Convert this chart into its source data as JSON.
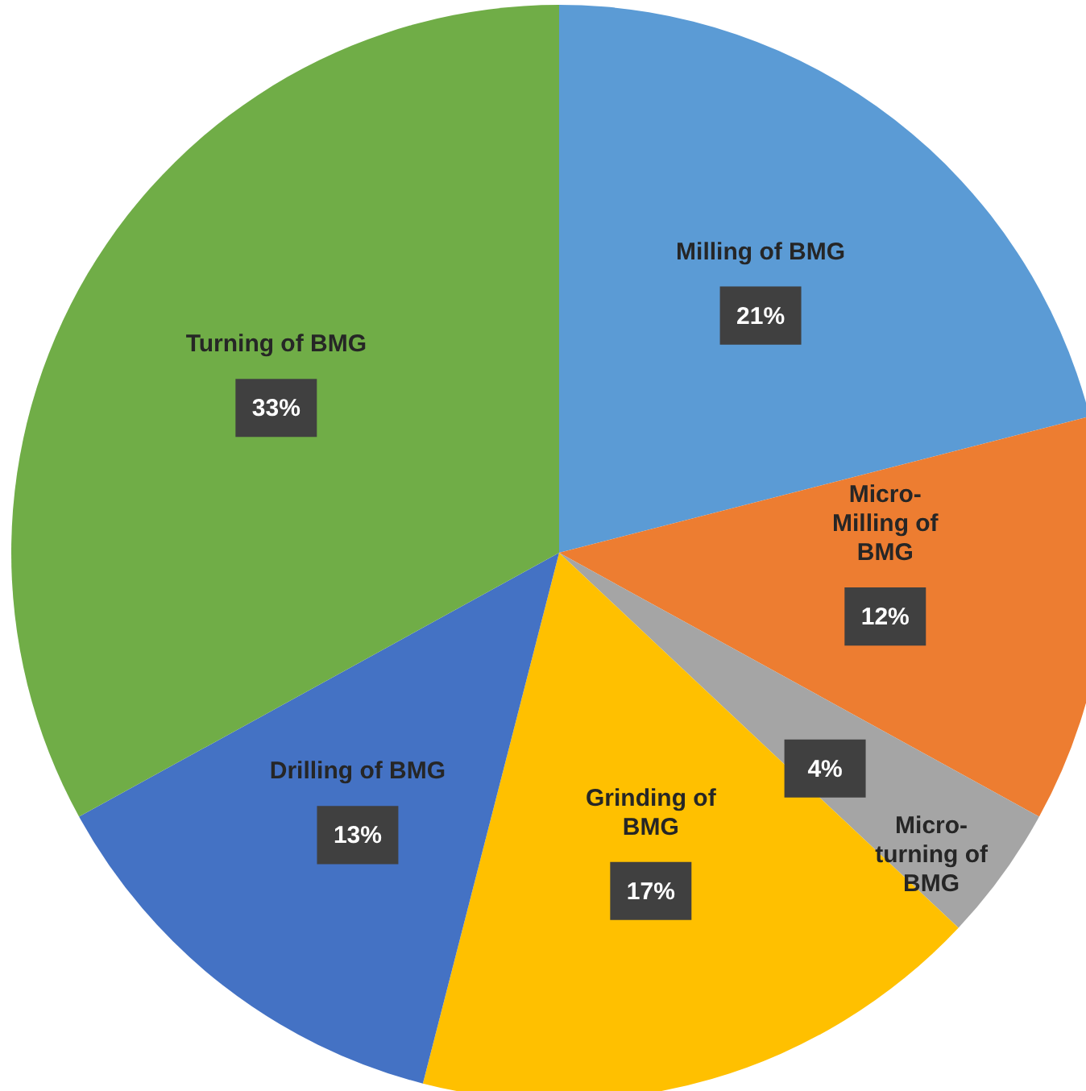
{
  "chart_data": {
    "type": "pie",
    "categories": [
      "Milling of BMG",
      "Micro-\nMilling of\nBMG",
      "Micro-\nturning of\nBMG",
      "Grinding of\nBMG",
      "Drilling of BMG",
      "Turning of BMG"
    ],
    "values": [
      21,
      12,
      4,
      17,
      13,
      33
    ],
    "value_labels": [
      "21%",
      "12%",
      "4%",
      "17%",
      "13%",
      "33%"
    ],
    "colors": [
      "#5b9bd5",
      "#ed7d31",
      "#a5a5a5",
      "#ffc000",
      "#4472c4",
      "#70ad47"
    ]
  }
}
